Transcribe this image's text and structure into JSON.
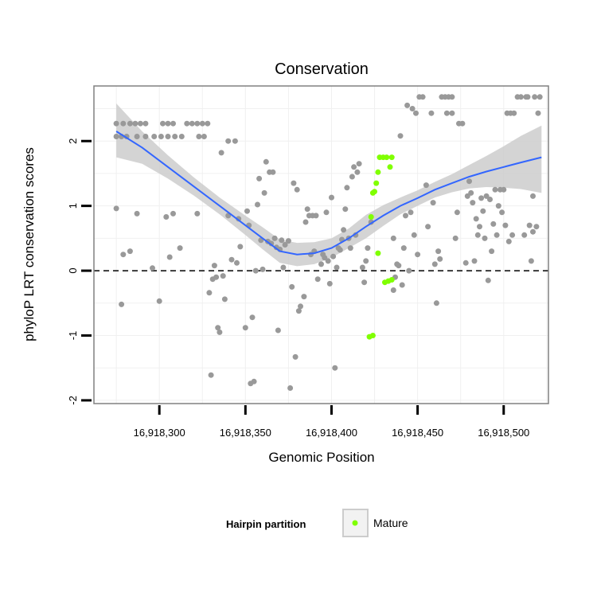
{
  "chart_data": {
    "type": "scatter",
    "title": "Conservation",
    "xlabel": "Genomic Position",
    "ylabel": "phyloP LRT conservation scores",
    "xlim": [
      16918262,
      16918526
    ],
    "ylim": [
      -2.05,
      2.85
    ],
    "x_ticks": [
      16918300,
      16918350,
      16918400,
      16918450,
      16918500
    ],
    "x_tick_labels": [
      "16,918,300",
      "16,918,350",
      "16,918,400",
      "16,918,450",
      "16,918,500"
    ],
    "y_ticks": [
      -2,
      -1,
      0,
      1,
      2
    ],
    "y_tick_labels": [
      "-2",
      "-1",
      "0",
      "1",
      "2"
    ],
    "reference_line": {
      "y": 0,
      "style": "dashed"
    },
    "colors": {
      "other_points": "#999999",
      "mature_points": "#80ff00",
      "smooth_line": "#3366ff",
      "confidence_band": "#cccccc",
      "grid": "#f0f0f0",
      "panel_border": "#808080"
    },
    "legend": {
      "title": "Hairpin partition",
      "position": "bottom",
      "entries": [
        {
          "label": "Mature",
          "color": "#80ff00"
        }
      ]
    },
    "smooth": {
      "x": [
        16918275,
        16918290,
        16918305,
        16918320,
        16918335,
        16918350,
        16918360,
        16918370,
        16918380,
        16918390,
        16918400,
        16918410,
        16918420,
        16918430,
        16918440,
        16918450,
        16918460,
        16918470,
        16918480,
        16918490,
        16918500,
        16918510,
        16918522
      ],
      "y": [
        2.15,
        1.9,
        1.6,
        1.3,
        1.0,
        0.7,
        0.5,
        0.3,
        0.25,
        0.27,
        0.35,
        0.5,
        0.68,
        0.85,
        1.0,
        1.12,
        1.25,
        1.35,
        1.45,
        1.53,
        1.6,
        1.67,
        1.75
      ],
      "lower": [
        1.75,
        1.65,
        1.42,
        1.16,
        0.87,
        0.55,
        0.33,
        0.12,
        0.07,
        0.1,
        0.2,
        0.35,
        0.5,
        0.69,
        0.87,
        1.0,
        1.13,
        1.21,
        1.27,
        1.29,
        1.28,
        1.26,
        1.2
      ],
      "upper": [
        2.58,
        2.15,
        1.78,
        1.44,
        1.13,
        0.85,
        0.67,
        0.48,
        0.43,
        0.44,
        0.5,
        0.65,
        0.86,
        1.01,
        1.13,
        1.24,
        1.37,
        1.49,
        1.63,
        1.77,
        1.92,
        2.08,
        2.24
      ]
    },
    "series": [
      {
        "name": "Other",
        "points": [
          [
            16918275,
            2.27
          ],
          [
            16918279,
            2.27
          ],
          [
            16918283,
            2.27
          ],
          [
            16918286,
            2.27
          ],
          [
            16918289,
            2.27
          ],
          [
            16918292,
            2.27
          ],
          [
            16918302,
            2.27
          ],
          [
            16918305,
            2.27
          ],
          [
            16918308,
            2.27
          ],
          [
            16918316,
            2.27
          ],
          [
            16918319,
            2.27
          ],
          [
            16918322,
            2.27
          ],
          [
            16918325,
            2.27
          ],
          [
            16918328,
            2.27
          ],
          [
            16918275,
            2.07
          ],
          [
            16918278,
            2.07
          ],
          [
            16918281,
            2.07
          ],
          [
            16918287,
            2.07
          ],
          [
            16918292,
            2.07
          ],
          [
            16918297,
            2.07
          ],
          [
            16918301,
            2.07
          ],
          [
            16918305,
            2.07
          ],
          [
            16918309,
            2.07
          ],
          [
            16918313,
            2.07
          ],
          [
            16918323,
            2.07
          ],
          [
            16918326,
            2.07
          ],
          [
            16918275,
            0.96
          ],
          [
            16918278,
            -0.52
          ],
          [
            16918279,
            0.25
          ],
          [
            16918283,
            0.3
          ],
          [
            16918287,
            0.88
          ],
          [
            16918296,
            0.04
          ],
          [
            16918300,
            -0.47
          ],
          [
            16918304,
            0.83
          ],
          [
            16918306,
            0.21
          ],
          [
            16918308,
            0.88
          ],
          [
            16918312,
            0.35
          ],
          [
            16918322,
            0.88
          ],
          [
            16918329,
            -0.34
          ],
          [
            16918330,
            -1.61
          ],
          [
            16918331,
            -0.13
          ],
          [
            16918332,
            0.08
          ],
          [
            16918333,
            -0.1
          ],
          [
            16918334,
            -0.88
          ],
          [
            16918335,
            -0.95
          ],
          [
            16918336,
            1.82
          ],
          [
            16918337,
            -0.08
          ],
          [
            16918338,
            -0.44
          ],
          [
            16918340,
            0.85
          ],
          [
            16918340,
            2.0
          ],
          [
            16918342,
            0.17
          ],
          [
            16918344,
            2.0
          ],
          [
            16918345,
            0.12
          ],
          [
            16918346,
            0.8
          ],
          [
            16918347,
            0.37
          ],
          [
            16918350,
            -0.88
          ],
          [
            16918351,
            0.92
          ],
          [
            16918352,
            0.7
          ],
          [
            16918353,
            -1.74
          ],
          [
            16918354,
            -0.72
          ],
          [
            16918355,
            -1.71
          ],
          [
            16918356,
            0.0
          ],
          [
            16918357,
            1.02
          ],
          [
            16918358,
            1.42
          ],
          [
            16918359,
            0.47
          ],
          [
            16918360,
            0.02
          ],
          [
            16918361,
            1.2
          ],
          [
            16918362,
            1.68
          ],
          [
            16918363,
            0.45
          ],
          [
            16918364,
            1.52
          ],
          [
            16918365,
            0.42
          ],
          [
            16918366,
            1.52
          ],
          [
            16918367,
            0.5
          ],
          [
            16918368,
            0.36
          ],
          [
            16918369,
            -0.92
          ],
          [
            16918370,
            0.33
          ],
          [
            16918371,
            0.47
          ],
          [
            16918372,
            0.05
          ],
          [
            16918373,
            0.4
          ],
          [
            16918375,
            0.46
          ],
          [
            16918376,
            -1.81
          ],
          [
            16918377,
            -0.25
          ],
          [
            16918378,
            1.35
          ],
          [
            16918379,
            -1.33
          ],
          [
            16918380,
            1.25
          ],
          [
            16918381,
            -0.62
          ],
          [
            16918382,
            -0.55
          ],
          [
            16918384,
            -0.4
          ],
          [
            16918385,
            0.75
          ],
          [
            16918386,
            0.95
          ],
          [
            16918387,
            0.85
          ],
          [
            16918388,
            0.25
          ],
          [
            16918389,
            0.85
          ],
          [
            16918390,
            0.3
          ],
          [
            16918391,
            0.85
          ],
          [
            16918392,
            -0.13
          ],
          [
            16918394,
            0.1
          ],
          [
            16918395,
            0.25
          ],
          [
            16918396,
            0.2
          ],
          [
            16918397,
            0.9
          ],
          [
            16918398,
            0.15
          ],
          [
            16918399,
            -0.2
          ],
          [
            16918400,
            1.13
          ],
          [
            16918401,
            0.22
          ],
          [
            16918402,
            -1.5
          ],
          [
            16918403,
            0.05
          ],
          [
            16918404,
            0.35
          ],
          [
            16918405,
            0.32
          ],
          [
            16918406,
            0.48
          ],
          [
            16918407,
            0.63
          ],
          [
            16918408,
            0.95
          ],
          [
            16918409,
            1.28
          ],
          [
            16918410,
            0.5
          ],
          [
            16918411,
            0.35
          ],
          [
            16918412,
            1.45
          ],
          [
            16918413,
            1.6
          ],
          [
            16918414,
            0.55
          ],
          [
            16918415,
            1.52
          ],
          [
            16918416,
            1.65
          ],
          [
            16918418,
            0.05
          ],
          [
            16918419,
            -0.18
          ],
          [
            16918420,
            0.15
          ],
          [
            16918421,
            0.35
          ],
          [
            16918423,
            0.75
          ],
          [
            16918436,
            0.5
          ],
          [
            16918436,
            -0.3
          ],
          [
            16918437,
            -0.1
          ],
          [
            16918438,
            0.1
          ],
          [
            16918439,
            0.08
          ],
          [
            16918440,
            2.08
          ],
          [
            16918441,
            -0.22
          ],
          [
            16918442,
            0.35
          ],
          [
            16918443,
            0.85
          ],
          [
            16918444,
            2.55
          ],
          [
            16918445,
            0.0
          ],
          [
            16918446,
            0.9
          ],
          [
            16918447,
            2.5
          ],
          [
            16918448,
            0.55
          ],
          [
            16918449,
            2.43
          ],
          [
            16918450,
            0.25
          ],
          [
            16918451,
            2.68
          ],
          [
            16918453,
            2.68
          ],
          [
            16918455,
            1.32
          ],
          [
            16918456,
            0.68
          ],
          [
            16918458,
            2.43
          ],
          [
            16918459,
            1.05
          ],
          [
            16918460,
            0.1
          ],
          [
            16918461,
            -0.5
          ],
          [
            16918462,
            0.3
          ],
          [
            16918463,
            0.18
          ],
          [
            16918464,
            2.68
          ],
          [
            16918466,
            2.68
          ],
          [
            16918468,
            2.68
          ],
          [
            16918470,
            2.68
          ],
          [
            16918467,
            2.43
          ],
          [
            16918470,
            2.43
          ],
          [
            16918472,
            0.5
          ],
          [
            16918473,
            0.9
          ],
          [
            16918474,
            2.27
          ],
          [
            16918476,
            2.27
          ],
          [
            16918478,
            0.12
          ],
          [
            16918479,
            1.15
          ],
          [
            16918480,
            1.38
          ],
          [
            16918481,
            1.2
          ],
          [
            16918482,
            1.05
          ],
          [
            16918483,
            0.15
          ],
          [
            16918484,
            0.8
          ],
          [
            16918485,
            0.55
          ],
          [
            16918486,
            0.68
          ],
          [
            16918487,
            1.12
          ],
          [
            16918488,
            0.92
          ],
          [
            16918489,
            0.5
          ],
          [
            16918490,
            1.15
          ],
          [
            16918491,
            -0.15
          ],
          [
            16918492,
            1.1
          ],
          [
            16918493,
            0.3
          ],
          [
            16918494,
            0.72
          ],
          [
            16918495,
            1.25
          ],
          [
            16918496,
            0.55
          ],
          [
            16918497,
            1.0
          ],
          [
            16918498,
            1.25
          ],
          [
            16918499,
            0.9
          ],
          [
            16918500,
            1.25
          ],
          [
            16918501,
            0.7
          ],
          [
            16918502,
            2.43
          ],
          [
            16918503,
            0.45
          ],
          [
            16918504,
            2.43
          ],
          [
            16918505,
            0.55
          ],
          [
            16918506,
            2.43
          ],
          [
            16918508,
            2.68
          ],
          [
            16918510,
            2.68
          ],
          [
            16918512,
            0.55
          ],
          [
            16918513,
            2.68
          ],
          [
            16918514,
            2.68
          ],
          [
            16918515,
            0.7
          ],
          [
            16918516,
            0.15
          ],
          [
            16918517,
            1.15
          ],
          [
            16918517,
            0.6
          ],
          [
            16918518,
            2.68
          ],
          [
            16918519,
            0.68
          ],
          [
            16918520,
            2.43
          ],
          [
            16918521,
            2.68
          ]
        ]
      },
      {
        "name": "Mature",
        "points": [
          [
            16918423,
            0.83
          ],
          [
            16918424,
            1.2
          ],
          [
            16918425,
            1.22
          ],
          [
            16918426,
            1.35
          ],
          [
            16918427,
            1.52
          ],
          [
            16918428,
            1.75
          ],
          [
            16918430,
            1.75
          ],
          [
            16918432,
            1.75
          ],
          [
            16918434,
            1.6
          ],
          [
            16918435,
            1.75
          ],
          [
            16918427,
            0.27
          ],
          [
            16918431,
            -0.18
          ],
          [
            16918433,
            -0.16
          ],
          [
            16918435,
            -0.14
          ],
          [
            16918422,
            -1.02
          ],
          [
            16918424,
            -1.0
          ]
        ]
      }
    ]
  }
}
